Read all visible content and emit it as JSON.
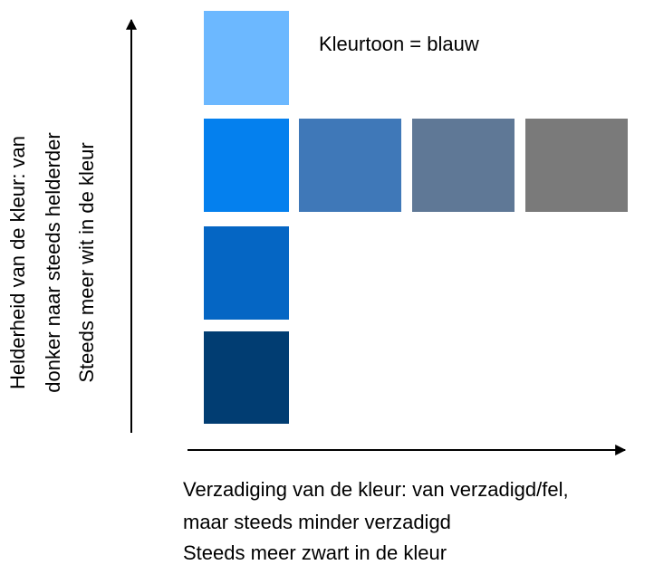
{
  "title": "Kleurtoon = blauw",
  "vertical_label": [
    "Helderheid van de kleur: van",
    "donker naar steeds helderder",
    "Steeds meer wit in de kleur"
  ],
  "horizontal_label": [
    "Verzadiging van de kleur: van verzadigd/fel,",
    "maar steeds minder verzadigd",
    "Steeds meer zwart in de kleur"
  ]
}
